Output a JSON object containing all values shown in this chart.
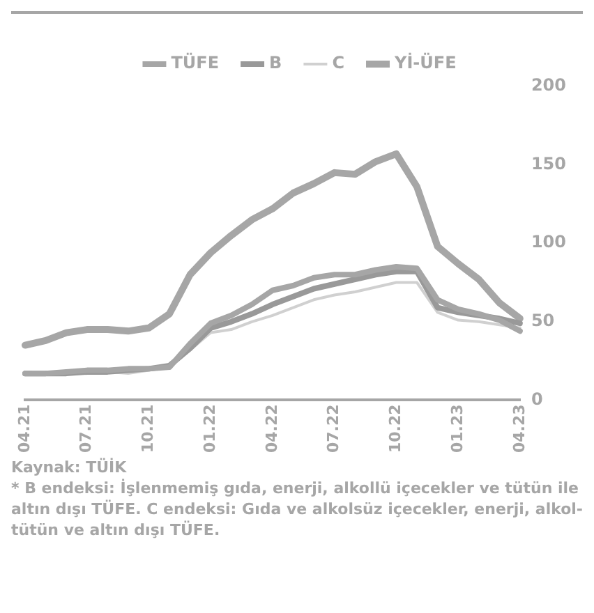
{
  "chart_data": {
    "type": "line",
    "categories": [
      "04.21",
      null,
      null,
      "07.21",
      null,
      null,
      "10.21",
      null,
      null,
      "01.22",
      null,
      null,
      "04.22",
      null,
      null,
      "07.22",
      null,
      null,
      "10.22",
      null,
      null,
      "01.23",
      null,
      null,
      "04.23"
    ],
    "series": [
      {
        "name": "TÜFE",
        "color": "#a6a6a6",
        "values": [
          17,
          17,
          18,
          19,
          19,
          20,
          20,
          21,
          36,
          49,
          54,
          61,
          70,
          73,
          78,
          80,
          80,
          83,
          85,
          84,
          64,
          58,
          55,
          51,
          44
        ]
      },
      {
        "name": "B",
        "color": "#999999",
        "values": [
          17,
          17,
          17,
          18,
          18,
          19,
          20,
          22,
          33,
          46,
          50,
          55,
          61,
          66,
          71,
          74,
          77,
          80,
          82,
          82,
          59,
          56,
          54,
          52,
          49
        ]
      },
      {
        "name": "C",
        "color": "#d0d0d0",
        "values": [
          18,
          17,
          17,
          17,
          18,
          17,
          19,
          21,
          32,
          43,
          45,
          50,
          54,
          59,
          64,
          67,
          69,
          72,
          75,
          75,
          56,
          51,
          50,
          48,
          46
        ]
      },
      {
        "name": "Yİ-ÜFE",
        "color": "#a6a6a6",
        "values": [
          35,
          38,
          43,
          45,
          45,
          44,
          46,
          55,
          80,
          94,
          105,
          115,
          122,
          132,
          138,
          145,
          144,
          152,
          157,
          136,
          98,
          87,
          77,
          62,
          52
        ]
      }
    ],
    "ylim": [
      0,
      200
    ],
    "yticks": [
      0,
      50,
      100,
      150,
      200
    ],
    "grid": false,
    "legend": "top",
    "marker": "none",
    "line_style": "solid",
    "annotations": [
      "Kaynak: TÜİK",
      "* B endeksi: İşlenmemiş gıda, enerji, alkollü içecekler ve tütün ile altın dışı TÜFE. C endeksi: Gıda ve alkolsüz içecekler, enerji, alkol-tütün ve altın dışı TÜFE."
    ]
  }
}
